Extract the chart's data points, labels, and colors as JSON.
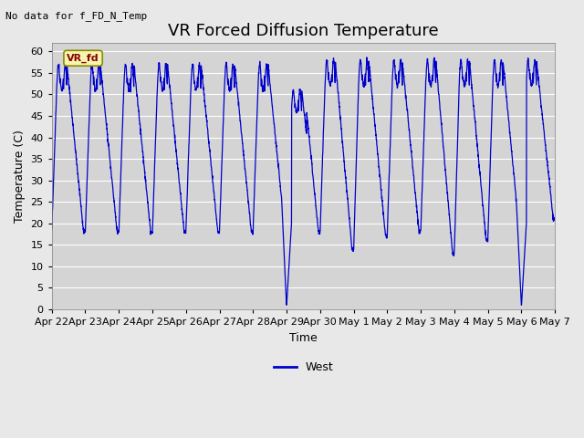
{
  "title": "VR Forced Diffusion Temperature",
  "xlabel": "Time",
  "ylabel": "Temperature (C)",
  "no_data_label": "No data for f_FD_N_Temp",
  "legend_label": "VR_fd",
  "legend_series": "West",
  "background_color": "#e8e8e8",
  "plot_bg_color": "#d4d4d4",
  "line_color": "#0000cc",
  "ylim": [
    0,
    62
  ],
  "yticks": [
    0,
    5,
    10,
    15,
    20,
    25,
    30,
    35,
    40,
    45,
    50,
    55,
    60
  ],
  "x_labels": [
    "Apr 22",
    "Apr 23",
    "Apr 24",
    "Apr 25",
    "Apr 26",
    "Apr 27",
    "Apr 28",
    "Apr 29",
    "Apr 30",
    "May 1",
    "May 2",
    "May 3",
    "May 4",
    "May 5",
    "May 6",
    "May 7"
  ],
  "title_fontsize": 13,
  "label_fontsize": 9,
  "tick_fontsize": 8,
  "nodata_fontsize": 8
}
